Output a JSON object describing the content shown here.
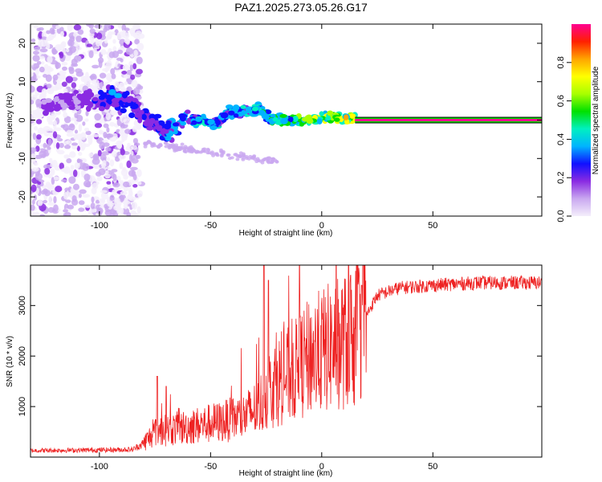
{
  "title": "PAZ1.2025.273.05.26.G17",
  "chart_data": [
    {
      "type": "heatmap",
      "name": "spectrogram",
      "xlabel": "Height of straight line (km)",
      "ylabel": "Frequency (Hz)",
      "xlim": [
        -131,
        99
      ],
      "ylim": [
        -25,
        25
      ],
      "xticks": [
        -100,
        -50,
        0,
        50
      ],
      "xtick_labels": [
        "-100",
        "-50",
        "0",
        "50"
      ],
      "yticks": [
        -20,
        -10,
        0,
        10,
        20
      ],
      "ytick_labels": [
        "-20",
        "-10",
        "0",
        "10",
        "20"
      ],
      "colorbar": {
        "label": "Normalized spectral amplitude",
        "range": [
          0,
          1
        ],
        "ticks": [
          0,
          0.2,
          0.4,
          0.6,
          0.8
        ],
        "tick_labels": [
          "0.0",
          "0.2",
          "0.4",
          "0.6",
          "0.8"
        ],
        "colormap": [
          "#f4eefb",
          "#c9a8f0",
          "#8a2be2",
          "#1010ff",
          "#00b4ff",
          "#00f0c0",
          "#00e000",
          "#a8ff00",
          "#ffff00",
          "#ffa500",
          "#ff2000",
          "#ff0090"
        ]
      },
      "ridge": {
        "x": [
          -125,
          -115,
          -105,
          -95,
          -88,
          -80,
          -75,
          -70,
          -62,
          -55,
          -48,
          -42,
          -35,
          -28,
          -22,
          -15,
          -10,
          -5,
          0,
          5,
          10,
          15
        ],
        "freq": [
          4,
          5,
          5,
          6,
          5,
          1,
          -1,
          -3,
          0,
          0,
          -1,
          2,
          2,
          3,
          0,
          0,
          0,
          0,
          1,
          1,
          0,
          1
        ],
        "amplitude": [
          0.2,
          0.2,
          0.2,
          0.3,
          0.3,
          0.25,
          0.3,
          0.35,
          0.35,
          0.4,
          0.4,
          0.4,
          0.4,
          0.45,
          0.5,
          0.55,
          0.6,
          0.65,
          0.7,
          0.7,
          0.75,
          0.8
        ]
      },
      "constant_band": {
        "x_start": 15,
        "x_end": 99,
        "freq": 0,
        "amplitude": 1.0
      }
    },
    {
      "type": "line",
      "name": "snr",
      "xlabel": "Height of straight line (km)",
      "ylabel": "SNR (10 * v/v)",
      "xlim": [
        -131,
        99
      ],
      "ylim": [
        0,
        3800
      ],
      "xticks": [
        -100,
        -50,
        0,
        50
      ],
      "xtick_labels": [
        "-100",
        "-50",
        "0",
        "50"
      ],
      "yticks": [
        1000,
        2000,
        3000
      ],
      "ytick_labels": [
        "1000",
        "2000",
        "3000"
      ],
      "color": "#ee2222",
      "trend": {
        "x": [
          -131,
          -100,
          -85,
          -80,
          -75,
          -60,
          -45,
          -35,
          -28,
          -25,
          -20,
          -12,
          -5,
          5,
          15,
          20,
          25,
          35,
          50,
          70,
          99
        ],
        "snr": [
          130,
          140,
          150,
          280,
          500,
          600,
          700,
          800,
          1000,
          1300,
          1500,
          1700,
          2000,
          2200,
          2350,
          2800,
          3200,
          3350,
          3400,
          3450,
          3450
        ]
      },
      "spikes": [
        {
          "x": -74,
          "snr": 1600
        },
        {
          "x": -70,
          "snr": 1400
        },
        {
          "x": -26,
          "snr": 3800
        },
        {
          "x": -24,
          "snr": 3500
        },
        {
          "x": -10,
          "snr": 3800
        },
        {
          "x": 13,
          "snr": 3600
        },
        {
          "x": 18,
          "snr": 3400
        }
      ]
    }
  ]
}
